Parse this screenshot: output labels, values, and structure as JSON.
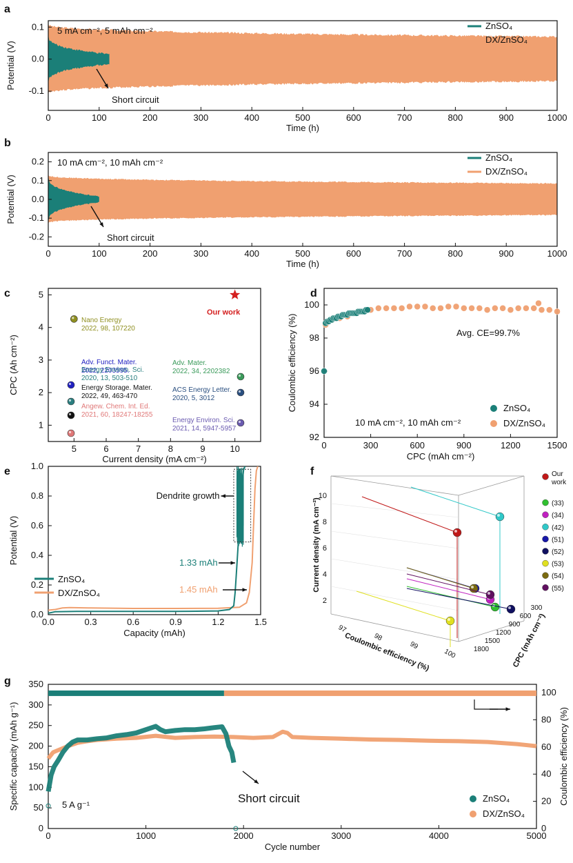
{
  "colors": {
    "zn": "#1b7f78",
    "dx": "#f0a070",
    "axis": "#111111",
    "grid": "#cccccc"
  },
  "panels": {
    "a": "a",
    "b": "b",
    "c": "c",
    "d": "d",
    "e": "e",
    "f": "f",
    "g": "g"
  },
  "chart_data": [
    {
      "id": "a",
      "type": "line",
      "condition": "5 mA cm⁻², 5 mAh cm⁻²",
      "xlabel": "Time (h)",
      "ylabel": "Potential (V)",
      "xlim": [
        0,
        1000
      ],
      "ylim": [
        -0.16,
        0.12
      ],
      "xticks": [
        0,
        100,
        200,
        300,
        400,
        500,
        600,
        700,
        800,
        900,
        1000
      ],
      "yticks": [
        {
          "v": 0.1,
          "t": "0.1"
        },
        {
          "v": 0.0,
          "t": "0.0"
        },
        {
          "v": -0.1,
          "t": "-0.1"
        }
      ],
      "annotation": "Short circuit",
      "series": [
        {
          "name": "ZnSO₄",
          "color": "zn",
          "x_end": 120,
          "start_amp": 0.075,
          "end_amp": 0.015
        },
        {
          "name": "DX/ZnSO₄",
          "color": "dx",
          "x_end": 1000,
          "start_amp": 0.11,
          "end_amp": 0.07
        }
      ]
    },
    {
      "id": "b",
      "type": "line",
      "condition": "10 mA cm⁻², 10 mAh cm⁻²",
      "xlabel": "Time (h)",
      "ylabel": "Potential (V)",
      "xlim": [
        0,
        1000
      ],
      "ylim": [
        -0.25,
        0.25
      ],
      "xticks": [
        0,
        100,
        200,
        300,
        400,
        500,
        600,
        700,
        800,
        900,
        1000
      ],
      "yticks": [
        {
          "v": 0.2,
          "t": "0.2"
        },
        {
          "v": 0.1,
          "t": "0.1"
        },
        {
          "v": 0.0,
          "t": "0.0"
        },
        {
          "v": -0.1,
          "t": "-0.1"
        },
        {
          "v": -0.2,
          "t": "-0.2"
        }
      ],
      "annotation": "Short circuit",
      "series": [
        {
          "name": "ZnSO₄",
          "color": "zn",
          "x_end": 100,
          "start_amp": 0.12,
          "end_amp": 0.015
        },
        {
          "name": "DX/ZnSO₄",
          "color": "dx",
          "x_end": 1000,
          "start_amp": 0.13,
          "end_amp": 0.085
        }
      ]
    },
    {
      "id": "c",
      "type": "scatter",
      "xlabel": "Current density (mA cm⁻²)",
      "ylabel": "CPC (Ah cm⁻²)",
      "xlim": [
        4.2,
        10.8
      ],
      "ylim": [
        0.5,
        5.2
      ],
      "xticks": [
        5,
        6,
        7,
        8,
        9,
        10
      ],
      "yticks": [
        1,
        2,
        3,
        4,
        5
      ],
      "points": [
        {
          "x": 10,
          "y": 5.0,
          "marker": "star",
          "color": "#d42020",
          "label": "Our work"
        },
        {
          "x": 5,
          "y": 4.26,
          "color": "#8f8f20",
          "label": "Nano Energy",
          "label2": "2022, 98, 107220"
        },
        {
          "x": 5,
          "y": 2.25,
          "color": "#2020c0",
          "label": "Adv. Funct. Mater.",
          "label2": "2022, 2203595."
        },
        {
          "x": 5,
          "y": 1.3,
          "color": "#111111",
          "label": "Energy Storage. Mater.",
          "label2": "2022, 49, 463-470"
        },
        {
          "x": 5,
          "y": 0.85,
          "color": "#e07878",
          "label": "Angew. Chem. Int. Ed.",
          "label2": "2021, 60, 18247-18255"
        },
        {
          "x": 5,
          "y": 1.85,
          "color": "#2a7f80",
          "label": "Energy Environ. Sci.",
          "label2": "2020, 13, 503-510"
        },
        {
          "x": 10,
          "y": 2.5,
          "color": "#3a9a5a",
          "label": "Adv. Mater.",
          "label2": "2022, 34, 2202382"
        },
        {
          "x": 10,
          "y": 2.0,
          "color": "#2a4f80",
          "label": "ACS Energy Letter.",
          "label2": "2020, 5, 3012"
        },
        {
          "x": 10,
          "y": 1.0,
          "color": "#6a5ab0",
          "label": "Energy Environ. Sci.",
          "label2": "2021, 14, 5947-5957"
        }
      ]
    },
    {
      "id": "d",
      "type": "scatter",
      "xlabel": "CPC (mAh cm⁻²)",
      "ylabel": "Coulombic efficiency (%)",
      "xlim": [
        0,
        1500
      ],
      "ylim": [
        92,
        101
      ],
      "xticks": [
        0,
        300,
        600,
        900,
        1200,
        1500
      ],
      "yticks": [
        92,
        94,
        96,
        98,
        100
      ],
      "annotation": "Avg. CE=99.7%",
      "condition": "10 mA cm⁻², 10 mAh cm⁻²",
      "series": [
        {
          "name": "ZnSO₄",
          "color": "zn",
          "x": [
            0,
            10,
            20,
            30,
            40,
            50,
            60,
            70,
            80,
            90,
            100,
            110,
            120,
            130,
            140,
            150,
            160,
            170,
            180,
            190,
            200,
            210,
            220,
            230,
            240,
            250,
            260,
            270,
            280
          ],
          "y": [
            96.0,
            98.9,
            99.0,
            99.0,
            99.1,
            99.1,
            99.2,
            99.2,
            99.2,
            99.3,
            99.3,
            99.3,
            99.4,
            99.4,
            99.4,
            99.4,
            99.5,
            99.5,
            99.5,
            99.5,
            99.5,
            99.5,
            99.6,
            99.6,
            99.6,
            99.6,
            99.6,
            99.7,
            99.7
          ]
        },
        {
          "name": "DX/ZnSO₄",
          "color": "dx",
          "x": [
            10,
            50,
            100,
            150,
            200,
            250,
            300,
            350,
            400,
            450,
            500,
            550,
            600,
            650,
            700,
            750,
            800,
            850,
            900,
            950,
            1000,
            1050,
            1100,
            1150,
            1200,
            1250,
            1300,
            1350,
            1380,
            1400,
            1450,
            1500
          ],
          "y": [
            98.8,
            99.1,
            99.2,
            99.3,
            99.5,
            99.6,
            99.7,
            99.8,
            99.8,
            99.8,
            99.8,
            99.9,
            99.9,
            99.9,
            99.8,
            99.8,
            99.9,
            99.9,
            99.8,
            99.8,
            99.8,
            99.7,
            99.8,
            99.8,
            99.7,
            99.8,
            99.8,
            99.8,
            100.1,
            99.7,
            99.7,
            99.6
          ]
        }
      ]
    },
    {
      "id": "e",
      "type": "line",
      "xlabel": "Capacity (mAh)",
      "ylabel": "Potential (V)",
      "xlim": [
        0,
        1.5
      ],
      "ylim": [
        0,
        1.0
      ],
      "xticks": [
        {
          "v": 0,
          "t": "0.0"
        },
        {
          "v": 0.3,
          "t": "0.3"
        },
        {
          "v": 0.6,
          "t": "0.6"
        },
        {
          "v": 0.9,
          "t": "0.9"
        },
        {
          "v": 1.2,
          "t": "1.2"
        },
        {
          "v": 1.5,
          "t": "1.5"
        }
      ],
      "yticks": [
        {
          "v": 0,
          "t": "0.0"
        },
        {
          "v": 0.2,
          "t": "0.2"
        },
        {
          "v": 0.4,
          "t": "0.4"
        },
        {
          "v": 0.6,
          "t": "0.6"
        },
        {
          "v": 0.8,
          "t": "0.8"
        },
        {
          "v": 1.0,
          "t": "1.0"
        }
      ],
      "annotations": [
        "Dendrite growth",
        "1.33 mAh",
        "1.45 mAh"
      ],
      "series": [
        {
          "name": "ZnSO₄",
          "color": "zn",
          "x": [
            0,
            0.05,
            0.2,
            0.5,
            0.8,
            1.0,
            1.2,
            1.28,
            1.31,
            1.32,
            1.33,
            1.34,
            1.35,
            1.36,
            1.37,
            1.38,
            1.39
          ],
          "y": [
            0.01,
            0.02,
            0.022,
            0.022,
            0.022,
            0.023,
            0.025,
            0.035,
            0.06,
            0.15,
            0.3,
            0.45,
            0.6,
            0.75,
            0.9,
            0.98,
            1.0
          ]
        },
        {
          "name": "DX/ZnSO₄",
          "color": "dx",
          "x": [
            0,
            0.05,
            0.1,
            0.15,
            0.3,
            0.6,
            0.9,
            1.2,
            1.35,
            1.4,
            1.42,
            1.44,
            1.45,
            1.46,
            1.47,
            1.48
          ],
          "y": [
            0.03,
            0.035,
            0.045,
            0.048,
            0.045,
            0.042,
            0.042,
            0.043,
            0.05,
            0.08,
            0.15,
            0.35,
            0.6,
            0.85,
            0.97,
            1.0
          ]
        }
      ]
    },
    {
      "id": "f",
      "type": "scatter",
      "xlabel": "Coulombic efficiency (%)",
      "ylabel": "Current density (mA cm⁻²)",
      "zlabel": "CPC (mAh cm⁻²)",
      "xticks": [
        "97",
        "98",
        "99",
        "100"
      ],
      "yticks": [
        "2",
        "4",
        "6",
        "8",
        "10"
      ],
      "zticks": [
        "300",
        "600",
        "900",
        "1200",
        "1500",
        "1800"
      ],
      "legend": [
        {
          "label": "Our work",
          "color": "#c01818"
        },
        {
          "label": "(33)",
          "color": "#30c030"
        },
        {
          "label": "(34)",
          "color": "#c020c0"
        },
        {
          "label": "(42)",
          "color": "#30c8c8"
        },
        {
          "label": "(51)",
          "color": "#1818a8"
        },
        {
          "label": "(52)",
          "color": "#101060"
        },
        {
          "label": "(53)",
          "color": "#e0e020"
        },
        {
          "label": "(54)",
          "color": "#7a6a10"
        },
        {
          "label": "(55)",
          "color": "#601060"
        }
      ]
    },
    {
      "id": "g",
      "type": "line",
      "xlabel": "Cycle number",
      "ylabel": "Specific capacity (mAh g⁻¹)",
      "y2label": "Coulombic efficiency (%)",
      "xlim": [
        0,
        5000
      ],
      "ylim": [
        0,
        350
      ],
      "y2lim": [
        0,
        106.06
      ],
      "xticks": [
        0,
        1000,
        2000,
        3000,
        4000,
        5000
      ],
      "yticks": [
        0,
        50,
        100,
        150,
        200,
        250,
        300,
        350
      ],
      "y2ticks": [
        0,
        20,
        40,
        60,
        80,
        100
      ],
      "annotation": "Short circuit",
      "condition": "5 A g⁻¹",
      "series": [
        {
          "name": "ZnSO₄",
          "color": "zn",
          "axis": "left",
          "x": [
            0,
            30,
            60,
            100,
            150,
            200,
            250,
            300,
            400,
            500,
            600,
            700,
            800,
            900,
            1000,
            1100,
            1150,
            1200,
            1300,
            1400,
            1500,
            1600,
            1700,
            1780,
            1820,
            1850,
            1880,
            1900
          ],
          "y": [
            90,
            130,
            150,
            165,
            185,
            200,
            210,
            215,
            215,
            218,
            220,
            225,
            228,
            232,
            240,
            248,
            240,
            235,
            238,
            240,
            240,
            242,
            245,
            247,
            230,
            200,
            185,
            160
          ]
        },
        {
          "name": "DX/ZnSO₄",
          "color": "dx",
          "axis": "left",
          "x": [
            0,
            50,
            100,
            150,
            200,
            300,
            400,
            500,
            700,
            900,
            1100,
            1300,
            1500,
            1700,
            1900,
            2100,
            2300,
            2400,
            2450,
            2500,
            2700,
            3000,
            3300,
            3600,
            3900,
            4200,
            4500,
            4800,
            5000
          ],
          "y": [
            170,
            185,
            190,
            195,
            200,
            208,
            212,
            215,
            218,
            220,
            225,
            220,
            222,
            223,
            222,
            220,
            222,
            235,
            232,
            222,
            220,
            218,
            216,
            215,
            213,
            212,
            210,
            205,
            200
          ]
        },
        {
          "name": "ZnSO₄ CE",
          "color": "zn",
          "axis": "right",
          "x": [
            0,
            1800
          ],
          "y": [
            99.5,
            99.5
          ]
        },
        {
          "name": "DX/ZnSO₄ CE",
          "color": "dx",
          "axis": "right",
          "x": [
            1800,
            5000
          ],
          "y": [
            99.5,
            99.5
          ]
        }
      ]
    }
  ]
}
